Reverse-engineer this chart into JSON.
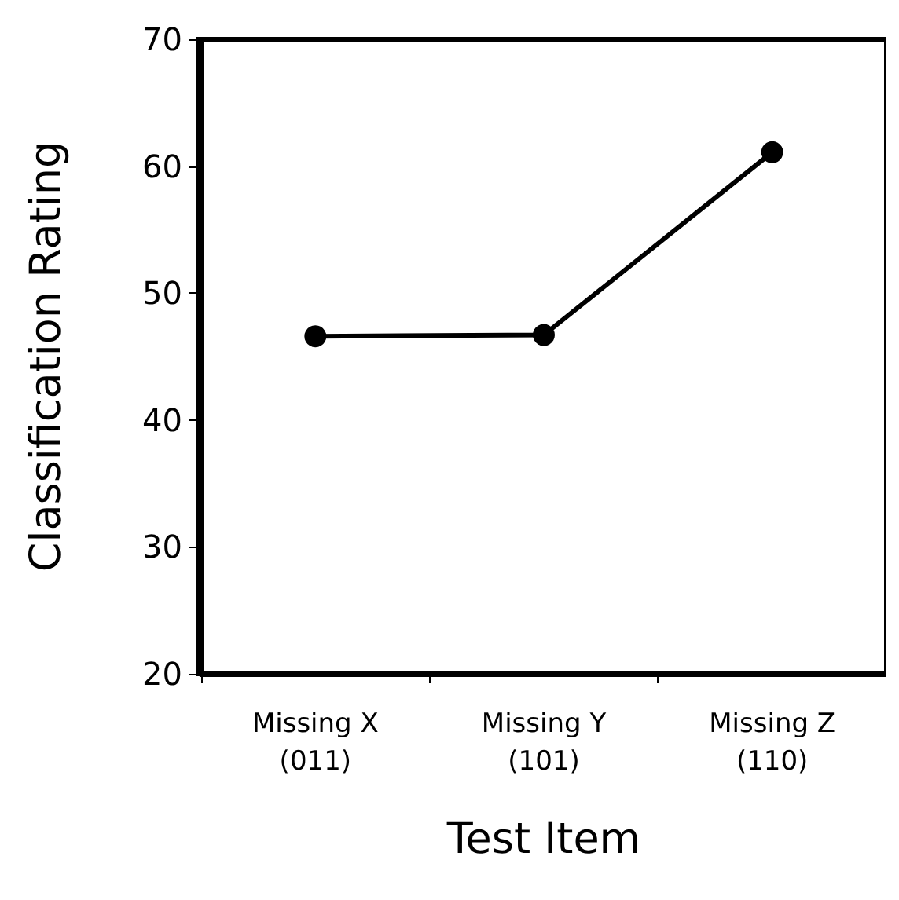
{
  "chart_data": {
    "type": "line",
    "xlabel": "Test Item",
    "ylabel": "Classification Rating",
    "categories": [
      "Missing X\n(011)",
      "Missing Y\n(101)",
      "Missing Z\n(110)"
    ],
    "series": [
      {
        "color": "#000000",
        "values": [
          46.6,
          46.7,
          61.1
        ]
      }
    ],
    "ylim": [
      20,
      70
    ],
    "yticks": [
      20,
      30,
      40,
      50,
      60,
      70
    ],
    "grid": false,
    "marker": "circle",
    "line_style": "solid"
  }
}
